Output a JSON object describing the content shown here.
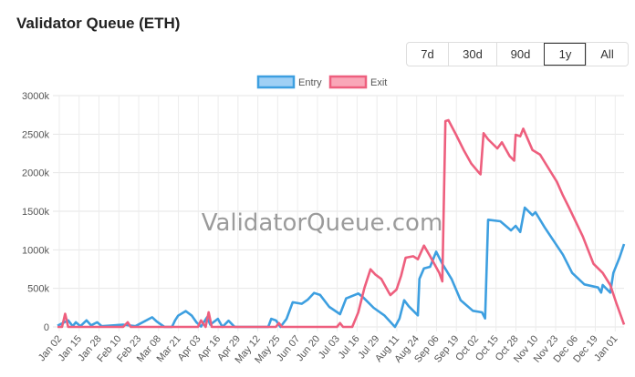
{
  "header": {
    "title": "Validator Queue (ETH)"
  },
  "range_buttons": [
    {
      "label": "7d",
      "active": false
    },
    {
      "label": "30d",
      "active": false
    },
    {
      "label": "90d",
      "active": false
    },
    {
      "label": "1y",
      "active": true
    },
    {
      "label": "All",
      "active": false
    }
  ],
  "watermark": "ValidatorQueue.com",
  "chart_data": {
    "type": "line",
    "title": "",
    "xlabel": "",
    "ylabel": "",
    "xlim": [
      "2025-01-02",
      "2026-01-08"
    ],
    "ylim": [
      0,
      3000
    ],
    "y_ticks": [
      0,
      500,
      1000,
      1500,
      2000,
      2500,
      3000
    ],
    "y_tick_labels": [
      "0",
      "500k",
      "1000k",
      "1500k",
      "2000k",
      "2500k",
      "3000k"
    ],
    "x_tick_labels": [
      "Jan 02",
      "Jan 15",
      "Jan 28",
      "Feb 10",
      "Feb 23",
      "Mar 08",
      "Mar 21",
      "Apr 03",
      "Apr 16",
      "Apr 29",
      "May 12",
      "May 25",
      "Jun 07",
      "Jun 20",
      "Jul 03",
      "Jul 16",
      "Jul 29",
      "Aug 11",
      "Aug 24",
      "Sep 06",
      "Sep 19",
      "Oct 02",
      "Oct 15",
      "Oct 28",
      "Nov 10",
      "Nov 23",
      "Dec 06",
      "Dec 19",
      "Jan 01"
    ],
    "grid": true,
    "legend_position": "top",
    "unit": "k ETH",
    "series": [
      {
        "name": "Entry",
        "color": "#3d9fe0",
        "fill": "#9fd0f5",
        "points": [
          [
            "2025-01-02",
            15
          ],
          [
            "2025-01-09",
            85
          ],
          [
            "2025-01-12",
            10
          ],
          [
            "2025-01-14",
            60
          ],
          [
            "2025-01-17",
            10
          ],
          [
            "2025-01-21",
            85
          ],
          [
            "2025-01-24",
            20
          ],
          [
            "2025-01-28",
            60
          ],
          [
            "2025-01-31",
            10
          ],
          [
            "2025-02-14",
            30
          ],
          [
            "2025-02-22",
            10
          ],
          [
            "2025-03-05",
            125
          ],
          [
            "2025-03-08",
            70
          ],
          [
            "2025-03-13",
            0
          ],
          [
            "2025-03-18",
            0
          ],
          [
            "2025-03-20",
            85
          ],
          [
            "2025-03-22",
            145
          ],
          [
            "2025-03-27",
            205
          ],
          [
            "2025-03-31",
            145
          ],
          [
            "2025-04-03",
            60
          ],
          [
            "2025-04-06",
            5
          ],
          [
            "2025-04-10",
            125
          ],
          [
            "2025-04-12",
            30
          ],
          [
            "2025-04-17",
            105
          ],
          [
            "2025-04-20",
            0
          ],
          [
            "2025-04-24",
            80
          ],
          [
            "2025-04-28",
            0
          ],
          [
            "2025-05-20",
            0
          ],
          [
            "2025-05-22",
            105
          ],
          [
            "2025-05-25",
            85
          ],
          [
            "2025-05-28",
            0
          ],
          [
            "2025-06-01",
            105
          ],
          [
            "2025-06-05",
            320
          ],
          [
            "2025-06-11",
            300
          ],
          [
            "2025-06-15",
            355
          ],
          [
            "2025-06-19",
            440
          ],
          [
            "2025-06-23",
            415
          ],
          [
            "2025-06-29",
            260
          ],
          [
            "2025-07-06",
            165
          ],
          [
            "2025-07-10",
            370
          ],
          [
            "2025-07-18",
            433
          ],
          [
            "2025-07-21",
            386
          ],
          [
            "2025-07-28",
            248
          ],
          [
            "2025-08-04",
            150
          ],
          [
            "2025-08-11",
            0
          ],
          [
            "2025-08-14",
            110
          ],
          [
            "2025-08-17",
            346
          ],
          [
            "2025-08-20",
            268
          ],
          [
            "2025-08-26",
            150
          ],
          [
            "2025-08-27",
            622
          ],
          [
            "2025-08-30",
            760
          ],
          [
            "2025-09-03",
            780
          ],
          [
            "2025-09-07",
            976
          ],
          [
            "2025-09-11",
            819
          ],
          [
            "2025-09-17",
            622
          ],
          [
            "2025-09-23",
            346
          ],
          [
            "2025-10-01",
            209
          ],
          [
            "2025-10-07",
            189
          ],
          [
            "2025-10-09",
            110
          ],
          [
            "2025-10-11",
            1390
          ],
          [
            "2025-10-19",
            1370
          ],
          [
            "2025-10-26",
            1252
          ],
          [
            "2025-10-29",
            1311
          ],
          [
            "2025-11-01",
            1232
          ],
          [
            "2025-11-04",
            1547
          ],
          [
            "2025-11-09",
            1449
          ],
          [
            "2025-11-11",
            1488
          ],
          [
            "2025-11-17",
            1291
          ],
          [
            "2025-11-23",
            1114
          ],
          [
            "2025-11-29",
            937
          ],
          [
            "2025-12-05",
            700
          ],
          [
            "2025-12-13",
            551
          ],
          [
            "2025-12-22",
            512
          ],
          [
            "2025-12-24",
            445
          ],
          [
            "2025-12-25",
            543
          ],
          [
            "2025-12-30",
            445
          ],
          [
            "2026-01-01",
            700
          ],
          [
            "2026-01-05",
            898
          ],
          [
            "2026-01-08",
            1075
          ]
        ]
      },
      {
        "name": "Exit",
        "color": "#ee5f7e",
        "fill": "#f9a7b8",
        "points": [
          [
            "2025-01-02",
            0
          ],
          [
            "2025-01-05",
            0
          ],
          [
            "2025-01-07",
            170
          ],
          [
            "2025-01-09",
            0
          ],
          [
            "2025-02-14",
            0
          ],
          [
            "2025-02-17",
            60
          ],
          [
            "2025-02-19",
            0
          ],
          [
            "2025-04-04",
            0
          ],
          [
            "2025-04-06",
            85
          ],
          [
            "2025-04-09",
            0
          ],
          [
            "2025-04-11",
            190
          ],
          [
            "2025-04-13",
            0
          ],
          [
            "2025-05-25",
            0
          ],
          [
            "2025-05-27",
            50
          ],
          [
            "2025-05-29",
            0
          ],
          [
            "2025-07-04",
            0
          ],
          [
            "2025-07-06",
            50
          ],
          [
            "2025-07-08",
            0
          ],
          [
            "2025-07-14",
            0
          ],
          [
            "2025-07-18",
            189
          ],
          [
            "2025-07-22",
            504
          ],
          [
            "2025-07-26",
            748
          ],
          [
            "2025-07-29",
            681
          ],
          [
            "2025-08-02",
            622
          ],
          [
            "2025-08-07",
            445
          ],
          [
            "2025-08-08",
            413
          ],
          [
            "2025-08-12",
            484
          ],
          [
            "2025-08-15",
            661
          ],
          [
            "2025-08-18",
            898
          ],
          [
            "2025-08-23",
            917
          ],
          [
            "2025-08-26",
            878
          ],
          [
            "2025-08-30",
            1055
          ],
          [
            "2025-09-03",
            917
          ],
          [
            "2025-09-09",
            700
          ],
          [
            "2025-09-11",
            591
          ],
          [
            "2025-09-13",
            2669
          ],
          [
            "2025-09-15",
            2681
          ],
          [
            "2025-09-20",
            2492
          ],
          [
            "2025-09-25",
            2295
          ],
          [
            "2025-09-30",
            2118
          ],
          [
            "2025-10-05",
            2000
          ],
          [
            "2025-10-06",
            1980
          ],
          [
            "2025-10-08",
            2512
          ],
          [
            "2025-10-11",
            2433
          ],
          [
            "2025-10-17",
            2315
          ],
          [
            "2025-10-20",
            2394
          ],
          [
            "2025-10-25",
            2217
          ],
          [
            "2025-10-28",
            2157
          ],
          [
            "2025-10-29",
            2492
          ],
          [
            "2025-11-01",
            2472
          ],
          [
            "2025-11-03",
            2571
          ],
          [
            "2025-11-09",
            2295
          ],
          [
            "2025-11-14",
            2236
          ],
          [
            "2025-11-17",
            2138
          ],
          [
            "2025-11-25",
            1882
          ],
          [
            "2025-11-29",
            1705
          ],
          [
            "2025-12-03",
            1547
          ],
          [
            "2025-12-12",
            1173
          ],
          [
            "2025-12-19",
            819
          ],
          [
            "2025-12-25",
            700
          ],
          [
            "2025-12-30",
            543
          ],
          [
            "2026-01-03",
            307
          ],
          [
            "2026-01-08",
            31
          ]
        ]
      }
    ]
  }
}
